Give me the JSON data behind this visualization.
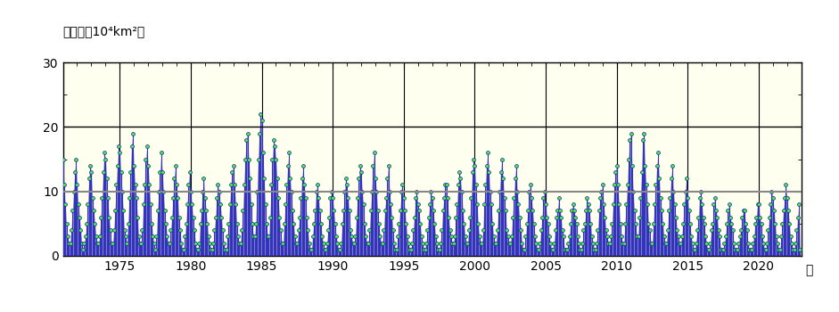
{
  "ylabel_line1": "面積",
  "ylabel_line2": "（10⁴km²）",
  "xlabel_unit": "年",
  "ylim": [
    0,
    30
  ],
  "yticks": [
    0,
    10,
    20,
    30
  ],
  "hline_20_color": "#000000",
  "mean_value": 10.0,
  "mean_line_color": "#888888",
  "bg_color": "#fffff0",
  "fill_color": "#8888cc",
  "line_color": "#3333bb",
  "dot_color": "#44ee44",
  "dot_edge_color": "#2222aa",
  "start_year": 1971,
  "end_year": 2022,
  "x_tick_years": [
    1975,
    1980,
    1985,
    1990,
    1995,
    2000,
    2005,
    2010,
    2015,
    2020
  ],
  "monthly_data": [
    15,
    11,
    8,
    5,
    3,
    2,
    2,
    4,
    7,
    10,
    13,
    15,
    11,
    8,
    6,
    4,
    2,
    1,
    2,
    3,
    5,
    8,
    12,
    14,
    13,
    9,
    7,
    5,
    3,
    2,
    2,
    3,
    6,
    9,
    13,
    16,
    15,
    12,
    9,
    6,
    4,
    2,
    2,
    4,
    7,
    11,
    14,
    17,
    16,
    13,
    10,
    7,
    4,
    3,
    2,
    5,
    9,
    13,
    17,
    19,
    14,
    11,
    9,
    6,
    3,
    2,
    2,
    4,
    8,
    11,
    15,
    17,
    14,
    11,
    8,
    5,
    3,
    2,
    1,
    3,
    7,
    10,
    13,
    16,
    13,
    10,
    7,
    5,
    3,
    2,
    2,
    4,
    6,
    9,
    12,
    14,
    11,
    9,
    6,
    4,
    2,
    1,
    1,
    3,
    5,
    8,
    11,
    13,
    10,
    8,
    6,
    4,
    2,
    1,
    1,
    2,
    5,
    7,
    10,
    12,
    9,
    7,
    5,
    3,
    2,
    1,
    1,
    2,
    4,
    6,
    9,
    11,
    10,
    8,
    6,
    4,
    2,
    1,
    1,
    3,
    5,
    8,
    11,
    13,
    14,
    11,
    8,
    5,
    3,
    2,
    2,
    4,
    7,
    11,
    15,
    18,
    19,
    15,
    12,
    8,
    5,
    3,
    3,
    5,
    10,
    15,
    19,
    22,
    21,
    16,
    12,
    8,
    5,
    3,
    3,
    6,
    11,
    15,
    18,
    17,
    15,
    12,
    9,
    6,
    4,
    2,
    2,
    5,
    8,
    11,
    14,
    16,
    12,
    10,
    7,
    5,
    3,
    2,
    2,
    4,
    6,
    9,
    12,
    14,
    11,
    9,
    6,
    4,
    2,
    1,
    1,
    3,
    5,
    7,
    10,
    11,
    9,
    7,
    5,
    3,
    2,
    1,
    1,
    2,
    4,
    6,
    9,
    10,
    9,
    7,
    5,
    3,
    2,
    1,
    1,
    2,
    5,
    7,
    10,
    12,
    11,
    9,
    7,
    4,
    3,
    2,
    2,
    3,
    6,
    9,
    12,
    14,
    13,
    10,
    8,
    5,
    3,
    2,
    2,
    4,
    7,
    10,
    14,
    16,
    12,
    10,
    7,
    5,
    3,
    2,
    2,
    4,
    7,
    9,
    12,
    14,
    10,
    8,
    6,
    4,
    2,
    1,
    1,
    3,
    5,
    7,
    10,
    11,
    9,
    7,
    5,
    3,
    2,
    1,
    1,
    2,
    4,
    6,
    9,
    10,
    8,
    7,
    5,
    3,
    2,
    1,
    1,
    2,
    4,
    6,
    8,
    10,
    9,
    7,
    5,
    3,
    2,
    1,
    1,
    2,
    4,
    7,
    9,
    11,
    11,
    9,
    6,
    4,
    3,
    2,
    2,
    3,
    6,
    8,
    11,
    13,
    12,
    10,
    7,
    5,
    3,
    2,
    2,
    4,
    6,
    9,
    13,
    15,
    14,
    11,
    8,
    5,
    3,
    2,
    2,
    4,
    8,
    11,
    14,
    16,
    13,
    10,
    8,
    5,
    3,
    2,
    2,
    4,
    7,
    10,
    13,
    15,
    12,
    9,
    7,
    4,
    3,
    2,
    2,
    3,
    6,
    9,
    12,
    14,
    10,
    8,
    6,
    4,
    2,
    1,
    1,
    3,
    5,
    7,
    10,
    11,
    9,
    7,
    5,
    3,
    2,
    1,
    1,
    2,
    4,
    6,
    9,
    10,
    8,
    6,
    5,
    3,
    2,
    1,
    1,
    2,
    4,
    6,
    7,
    9,
    7,
    6,
    4,
    3,
    1,
    1,
    1,
    2,
    3,
    5,
    7,
    8,
    7,
    6,
    5,
    3,
    2,
    1,
    1,
    2,
    4,
    5,
    7,
    9,
    8,
    7,
    5,
    3,
    2,
    1,
    1,
    2,
    4,
    7,
    9,
    10,
    11,
    8,
    6,
    4,
    3,
    2,
    2,
    3,
    5,
    8,
    11,
    13,
    14,
    11,
    8,
    5,
    3,
    2,
    2,
    5,
    8,
    11,
    15,
    18,
    19,
    14,
    10,
    7,
    5,
    3,
    3,
    6,
    9,
    13,
    18,
    19,
    14,
    11,
    8,
    5,
    4,
    2,
    2,
    5,
    8,
    11,
    14,
    16,
    12,
    9,
    7,
    5,
    3,
    2,
    2,
    4,
    7,
    9,
    12,
    14,
    10,
    8,
    6,
    4,
    3,
    2,
    2,
    3,
    5,
    8,
    10,
    12,
    9,
    7,
    5,
    3,
    2,
    1,
    1,
    2,
    4,
    6,
    9,
    10,
    8,
    6,
    5,
    3,
    2,
    1,
    1,
    2,
    4,
    5,
    8,
    9,
    7,
    6,
    4,
    3,
    1,
    1,
    1,
    2,
    3,
    5,
    7,
    8,
    6,
    5,
    4,
    2,
    1,
    1,
    1,
    2,
    3,
    4,
    6,
    7,
    7,
    5,
    4,
    2,
    1,
    1,
    1,
    2,
    3,
    5,
    6,
    8,
    8,
    6,
    5,
    3,
    2,
    1,
    1,
    2,
    4,
    6,
    8,
    10,
    9,
    7,
    5,
    3,
    2,
    1,
    1,
    3,
    5,
    7,
    9,
    11,
    9,
    7,
    5,
    3,
    2,
    1,
    1,
    2,
    4,
    6,
    8,
    1
  ]
}
